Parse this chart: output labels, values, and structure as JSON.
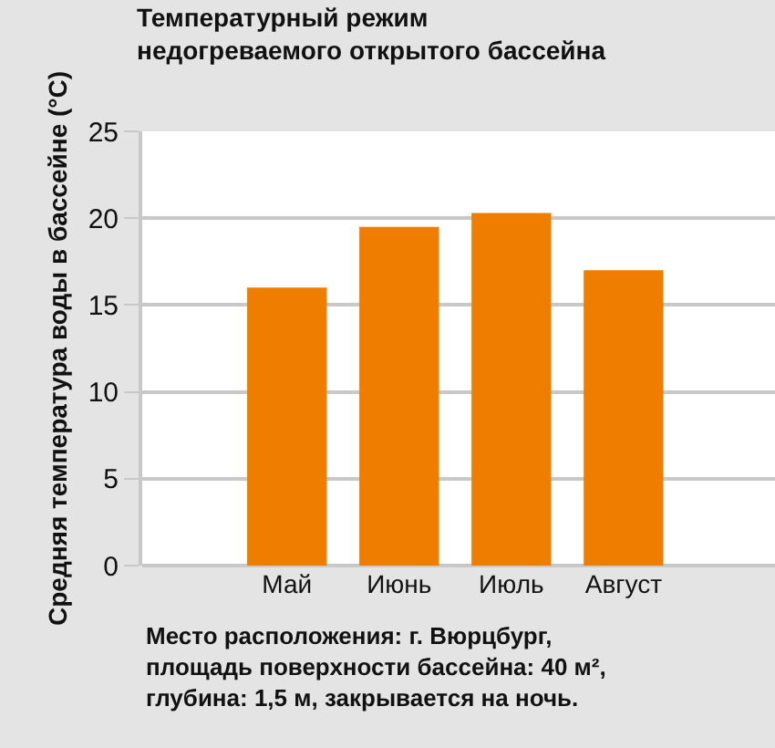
{
  "chart_data": {
    "type": "bar",
    "title": "Температурный режим\nнедогреваемого открытого бассейна",
    "ylabel": "Средняя температура воды в бассейне (°C)",
    "categories": [
      "Май",
      "Июнь",
      "Июль",
      "Август"
    ],
    "values": [
      16.0,
      19.5,
      20.3,
      17.0
    ],
    "color": "#ef7d00",
    "ylim": [
      0,
      25
    ],
    "yticks": [
      0,
      5,
      10,
      15,
      20,
      25
    ],
    "grid": "y",
    "annotations": [
      "Место расположения: г. Вюрцбург,\nплощадь поверхности бассейна: 40 м²,\nглубина: 1,5 м, закрывается на ночь."
    ]
  }
}
